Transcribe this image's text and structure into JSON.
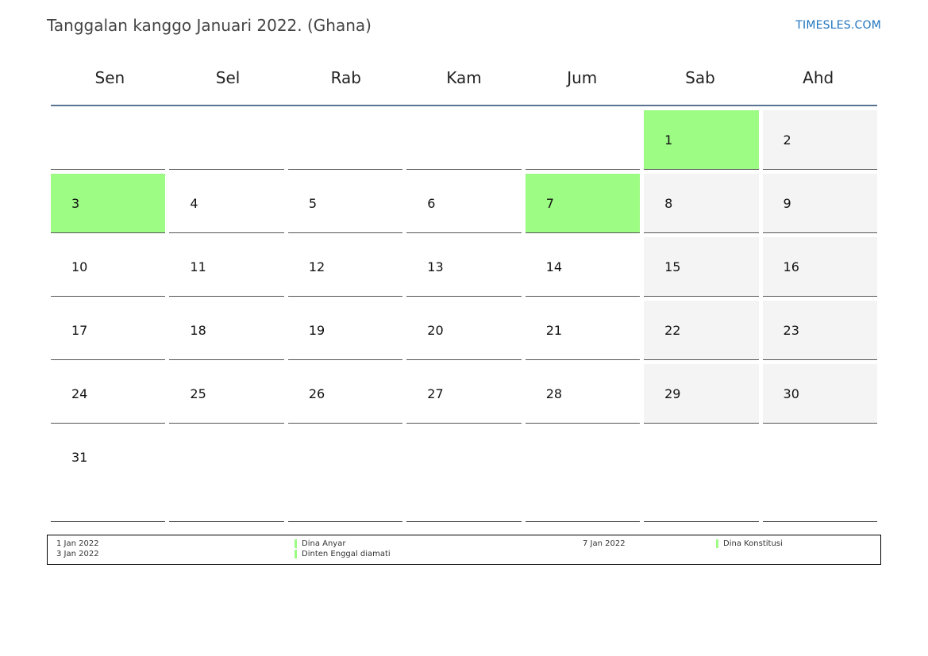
{
  "header": {
    "title": "Tanggalan kanggo Januari 2022. (Ghana)",
    "brand": "TIMESLES.COM"
  },
  "weekdays": [
    "Sen",
    "Sel",
    "Rab",
    "Kam",
    "Jum",
    "Sab",
    "Ahd"
  ],
  "weeks": [
    [
      "",
      "",
      "",
      "",
      "",
      "1",
      "2"
    ],
    [
      "3",
      "4",
      "5",
      "6",
      "7",
      "8",
      "9"
    ],
    [
      "10",
      "11",
      "12",
      "13",
      "14",
      "15",
      "16"
    ],
    [
      "17",
      "18",
      "19",
      "20",
      "21",
      "22",
      "23"
    ],
    [
      "24",
      "25",
      "26",
      "27",
      "28",
      "29",
      "30"
    ],
    [
      "31",
      "",
      "",
      "",
      "",
      "",
      ""
    ]
  ],
  "holidays": [
    "1",
    "3",
    "7"
  ],
  "legend": [
    {
      "date": "1 Jan 2022",
      "name": "Dina Anyar"
    },
    {
      "date": "3 Jan 2022",
      "name": "Dinten Enggal diamati"
    },
    {
      "date": "7 Jan 2022",
      "name": "Dina Konstitusi"
    }
  ],
  "colors": {
    "holiday": "#9cfc84",
    "weekend": "#f4f4f4",
    "brand": "#1e73be",
    "header_rule": "#5a7393"
  }
}
